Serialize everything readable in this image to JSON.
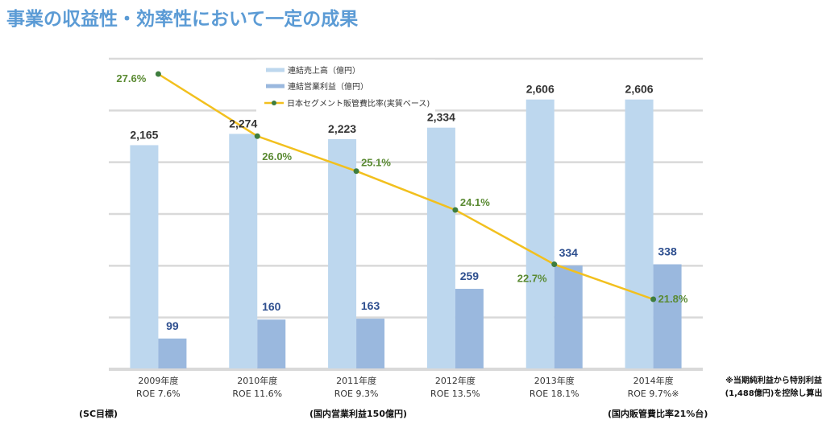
{
  "title": "事業の収益性・効率性において一定の成果",
  "chart_data": {
    "type": "bar",
    "title": "事業の収益性・効率性において一定の成果",
    "categories": [
      "2009年度",
      "2010年度",
      "2011年度",
      "2012年度",
      "2013年度",
      "2014年度"
    ],
    "category_sublabels": [
      "ROE 7.6%",
      "ROE 11.6%",
      "ROE 9.3%",
      "ROE 13.5%",
      "ROE 18.1%",
      "ROE 9.7%※"
    ],
    "series": [
      {
        "name": "連結売上高（億円）",
        "type": "bar",
        "axis": "primary",
        "color": "#bdd7ee",
        "values": [
          2165,
          2274,
          2223,
          2334,
          2606,
          2606
        ],
        "labels": [
          "2,165",
          "2,274",
          "2,223",
          "2,334",
          "2,606",
          "2,606"
        ]
      },
      {
        "name": "連結営業利益（億円）",
        "type": "bar",
        "axis": "secondary",
        "color": "#9ab8de",
        "values": [
          99,
          160,
          163,
          259,
          334,
          338
        ],
        "labels": [
          "99",
          "160",
          "163",
          "259",
          "334",
          "338"
        ]
      },
      {
        "name": "日本セグメント販管費比率(実質ベース)",
        "type": "line",
        "axis": "tertiary",
        "color": "#f2c01e",
        "marker_color": "#3e7d3e",
        "values": [
          27.6,
          26.0,
          25.1,
          24.1,
          22.7,
          21.8
        ],
        "labels": [
          "27.6%",
          "26.0%",
          "25.1%",
          "24.1%",
          "22.7%",
          "21.8%"
        ]
      }
    ],
    "primary_ylim": [
      0,
      3000
    ],
    "secondary_ylim": [
      0,
      1000
    ],
    "line_ylim": [
      20.0,
      28.0
    ],
    "grid": true,
    "gridline_count": 6,
    "legend": "top-center",
    "xlabel": "",
    "ylabel": ""
  },
  "notes": {
    "left": "(SC目標)",
    "middle": "(国内営業利益150億円)",
    "right": "(国内販管費比率21%台)"
  },
  "footnote": [
    "※当期純利益から特別利益",
    "(1,488億円)を控除し算出"
  ]
}
